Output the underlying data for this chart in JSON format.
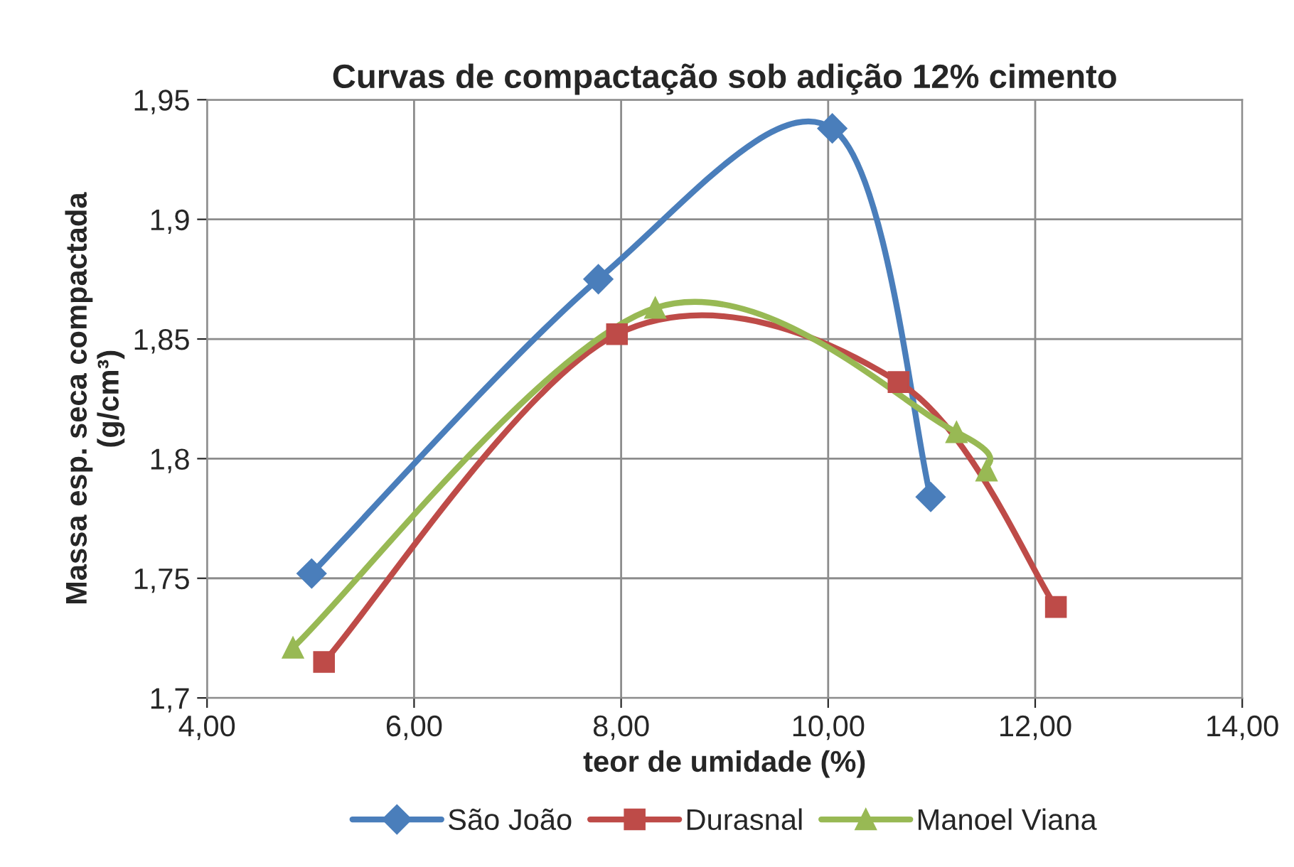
{
  "chart_data": {
    "type": "line",
    "title": "Curvas de compactação sob adição 12% cimento",
    "xlabel": "teor de umidade (%)",
    "ylabel": "Massa esp. seca compactada\n(g/cm³)",
    "series": [
      {
        "name": "São João",
        "color": "#4a7ebb",
        "marker": "diamond",
        "x": [
          5.01,
          7.78,
          10.04,
          10.99
        ],
        "values": [
          1.752,
          1.875,
          1.938,
          1.784
        ]
      },
      {
        "name": "Durasnal",
        "color": "#be4b48",
        "marker": "square",
        "x": [
          5.13,
          7.96,
          10.68,
          12.2
        ],
        "values": [
          1.715,
          1.852,
          1.832,
          1.738
        ]
      },
      {
        "name": "Manoel Viana",
        "color": "#98b954",
        "marker": "triangle",
        "x": [
          4.83,
          8.33,
          11.24,
          11.53
        ],
        "values": [
          1.721,
          1.863,
          1.811,
          1.795
        ]
      }
    ],
    "xlim": [
      4,
      14
    ],
    "xticks": [
      {
        "value": 4,
        "label": "4,00"
      },
      {
        "value": 6,
        "label": "6,00"
      },
      {
        "value": 8,
        "label": "8,00"
      },
      {
        "value": 10,
        "label": "10,00"
      },
      {
        "value": 12,
        "label": "12,00"
      },
      {
        "value": 14,
        "label": "14,00"
      }
    ],
    "ylim": [
      1.7,
      1.95
    ],
    "yticks": [
      {
        "value": 1.7,
        "label": "1,7"
      },
      {
        "value": 1.75,
        "label": "1,75"
      },
      {
        "value": 1.8,
        "label": "1,8"
      },
      {
        "value": 1.85,
        "label": "1,85"
      },
      {
        "value": 1.9,
        "label": "1,9"
      },
      {
        "value": 1.95,
        "label": "1,95"
      }
    ],
    "grid": true,
    "legend": "bottom",
    "line_style": "solid"
  }
}
